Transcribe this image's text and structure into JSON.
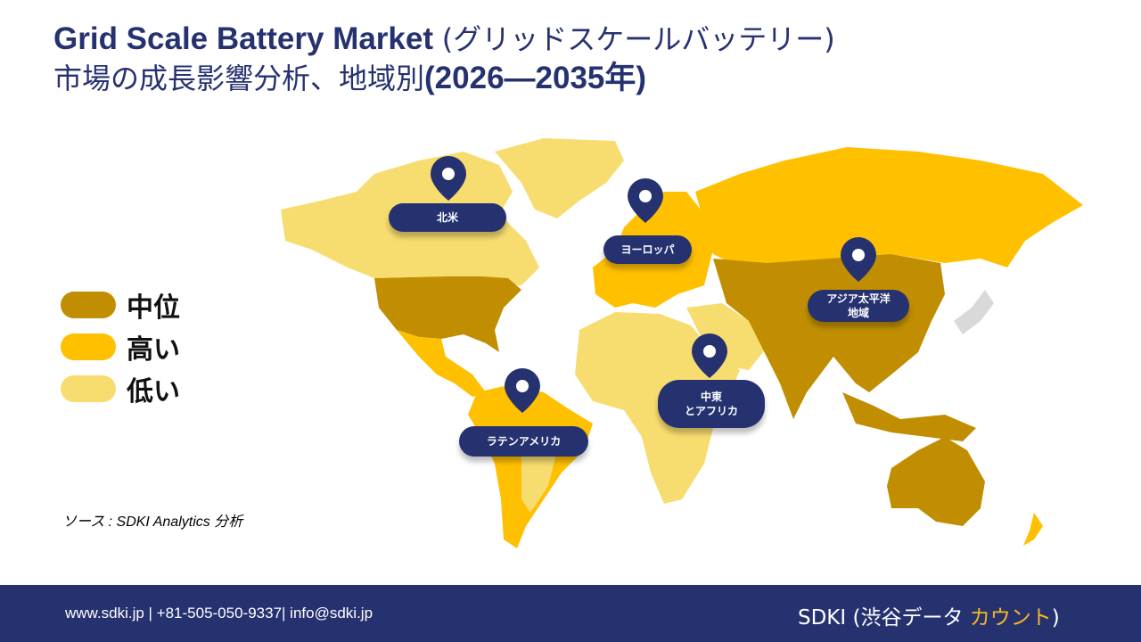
{
  "title": {
    "line1_en": "Grid Scale Battery Market",
    "line1_jp": "(グリッドスケールバッテリー)",
    "line2_jp": "市場の成長影響分析、地域別",
    "line2_years": "(2026—2035年)"
  },
  "legend": [
    {
      "label": "中位",
      "color": "#C08E00"
    },
    {
      "label": "高い",
      "color": "#FFC000"
    },
    {
      "label": "低い",
      "color": "#F7DC6F"
    }
  ],
  "regions": [
    {
      "label": "北米",
      "level": "低い"
    },
    {
      "label": "ヨーロッパ",
      "level": "高い"
    },
    {
      "label": "アジア太平洋地域",
      "level": "中位"
    },
    {
      "label": "中東とアフリカ",
      "level": "低い"
    },
    {
      "label": "ラテンアメリカ",
      "level": "高い"
    }
  ],
  "labels": {
    "north_america": "北米",
    "europe": "ヨーロッパ",
    "apac_1": "アジア太平洋",
    "apac_2": "地域",
    "mea_1": "中東",
    "mea_2": "とアフリカ",
    "latam": "ラテンアメリカ"
  },
  "source": "ソース : SDKI Analytics 分析",
  "footer": {
    "contact": "www.sdki.jp | +81-505-050-9337| info@sdki.jp",
    "brand_prefix": "SDKI (渋谷データ ",
    "brand_accent": "カウント",
    "brand_suffix": ")"
  },
  "colors": {
    "navy": "#263270",
    "mid": "#C08E00",
    "high": "#FFC000",
    "low": "#F7DC6F",
    "accent": "#F5B820"
  },
  "icons": [
    "map-pin-icon"
  ]
}
